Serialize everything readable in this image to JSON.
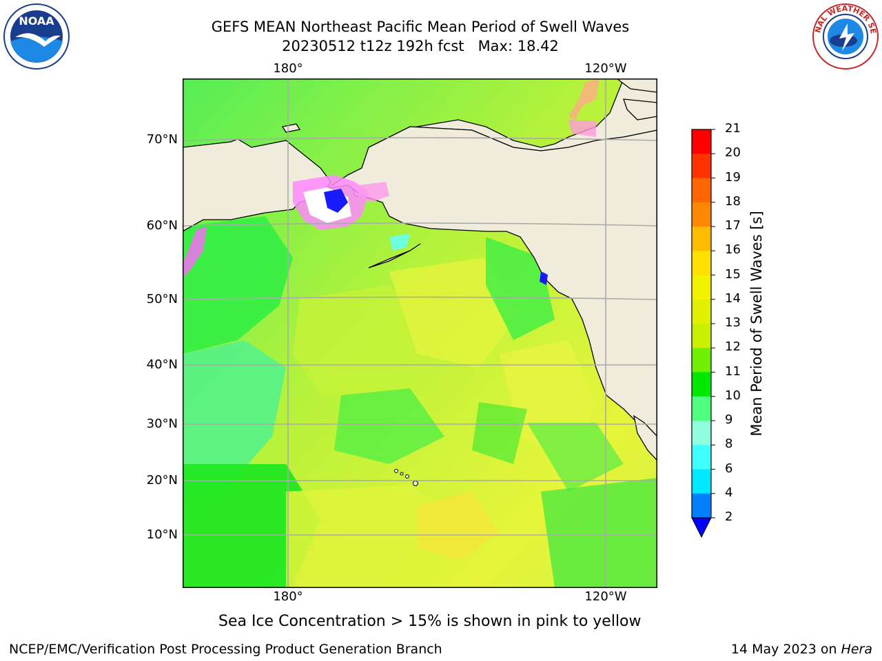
{
  "title_line1": "GEFS MEAN Northeast Pacific Mean Period of Swell Waves",
  "title_line2": "20230512 t12z 192h fcst   Max: 18.42",
  "lat_labels": [
    "70°N",
    "60°N",
    "50°N",
    "40°N",
    "30°N",
    "20°N",
    "10°N"
  ],
  "lon_labels_top": [
    "180°",
    "120°W"
  ],
  "lon_labels_bottom": [
    "180°",
    "120°W"
  ],
  "colorbar": {
    "title": "Mean Period of Swell Waves [s]",
    "ticks": [
      "21",
      "20",
      "19",
      "18",
      "17",
      "16",
      "15",
      "14",
      "13",
      "12",
      "11",
      "10",
      "9",
      "8",
      "6",
      "4",
      "2"
    ],
    "colors": [
      "#ff0000",
      "#ff3300",
      "#ff6600",
      "#ff8800",
      "#ffbb00",
      "#ffe000",
      "#f2f200",
      "#e0f000",
      "#c8f000",
      "#70f000",
      "#00e800",
      "#50ff80",
      "#90ffe0",
      "#40ffff",
      "#00e8ff",
      "#0080ff",
      "#0000ff"
    ]
  },
  "legend_note": "Sea Ice Concentration > 15% is shown in pink to yellow",
  "footer_left": "NCEP/EMC/Verification Post Processing Product Generation Branch",
  "footer_right_date": "14 May 2023 on ",
  "footer_right_host": "Hera",
  "logos": [
    "noaa-logo",
    "nws-logo"
  ]
}
